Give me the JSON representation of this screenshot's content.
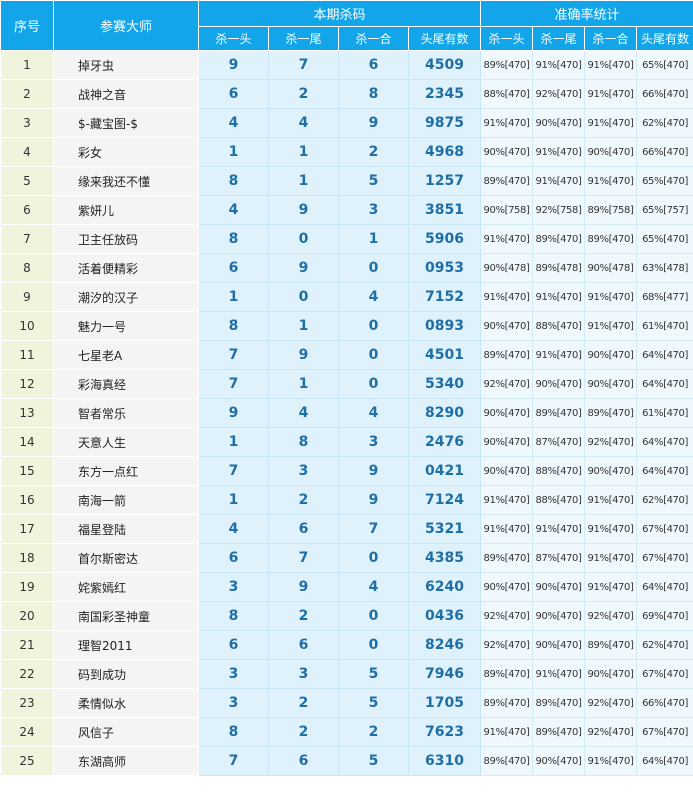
{
  "header": {
    "seq": "序号",
    "name": "参赛大师",
    "group1": "本期杀码",
    "group2": "准确率统计",
    "sub1": [
      "杀一头",
      "杀一尾",
      "杀一合",
      "头尾有数"
    ],
    "sub2": [
      "杀一头",
      "杀一尾",
      "杀一合",
      "头尾有数"
    ]
  },
  "rows": [
    [
      "1",
      "掉牙虫",
      "9",
      "7",
      "6",
      "4509",
      "89%[470]",
      "91%[470]",
      "91%[470]",
      "65%[470]"
    ],
    [
      "2",
      "战神之音",
      "6",
      "2",
      "8",
      "2345",
      "88%[470]",
      "92%[470]",
      "91%[470]",
      "66%[470]"
    ],
    [
      "3",
      "$-藏宝图-$",
      "4",
      "4",
      "9",
      "9875",
      "91%[470]",
      "90%[470]",
      "91%[470]",
      "62%[470]"
    ],
    [
      "4",
      "彩女",
      "1",
      "1",
      "2",
      "4968",
      "90%[470]",
      "91%[470]",
      "90%[470]",
      "66%[470]"
    ],
    [
      "5",
      "缘来我还不懂",
      "8",
      "1",
      "5",
      "1257",
      "89%[470]",
      "91%[470]",
      "91%[470]",
      "65%[470]"
    ],
    [
      "6",
      "紫妍儿",
      "4",
      "9",
      "3",
      "3851",
      "90%[758]",
      "92%[758]",
      "89%[758]",
      "65%[757]"
    ],
    [
      "7",
      "卫主任放码",
      "8",
      "0",
      "1",
      "5906",
      "91%[470]",
      "89%[470]",
      "89%[470]",
      "65%[470]"
    ],
    [
      "8",
      "活着便精彩",
      "6",
      "9",
      "0",
      "0953",
      "90%[478]",
      "89%[478]",
      "90%[478]",
      "63%[478]"
    ],
    [
      "9",
      "潮汐的汉子",
      "1",
      "0",
      "4",
      "7152",
      "91%[470]",
      "91%[470]",
      "91%[470]",
      "68%[477]"
    ],
    [
      "10",
      "魅力一号",
      "8",
      "1",
      "0",
      "0893",
      "90%[470]",
      "88%[470]",
      "91%[470]",
      "61%[470]"
    ],
    [
      "11",
      "七星老A",
      "7",
      "9",
      "0",
      "4501",
      "89%[470]",
      "91%[470]",
      "90%[470]",
      "64%[470]"
    ],
    [
      "12",
      "彩海真经",
      "7",
      "1",
      "0",
      "5340",
      "92%[470]",
      "90%[470]",
      "90%[470]",
      "64%[470]"
    ],
    [
      "13",
      "智者常乐",
      "9",
      "4",
      "4",
      "8290",
      "90%[470]",
      "89%[470]",
      "89%[470]",
      "61%[470]"
    ],
    [
      "14",
      "天意人生",
      "1",
      "8",
      "3",
      "2476",
      "90%[470]",
      "87%[470]",
      "92%[470]",
      "64%[470]"
    ],
    [
      "15",
      "东方一点红",
      "7",
      "3",
      "9",
      "0421",
      "90%[470]",
      "88%[470]",
      "90%[470]",
      "64%[470]"
    ],
    [
      "16",
      "南海一箭",
      "1",
      "2",
      "9",
      "7124",
      "91%[470]",
      "88%[470]",
      "91%[470]",
      "62%[470]"
    ],
    [
      "17",
      "福星登陆",
      "4",
      "6",
      "7",
      "5321",
      "91%[470]",
      "91%[470]",
      "91%[470]",
      "67%[470]"
    ],
    [
      "18",
      "首尔斯密达",
      "6",
      "7",
      "0",
      "4385",
      "89%[470]",
      "87%[470]",
      "91%[470]",
      "67%[470]"
    ],
    [
      "19",
      "姹紫嫣红",
      "3",
      "9",
      "4",
      "6240",
      "90%[470]",
      "90%[470]",
      "91%[470]",
      "64%[470]"
    ],
    [
      "20",
      "南国彩圣神童",
      "8",
      "2",
      "0",
      "0436",
      "92%[470]",
      "90%[470]",
      "92%[470]",
      "69%[470]"
    ],
    [
      "21",
      "理智2011",
      "6",
      "6",
      "0",
      "8246",
      "92%[470]",
      "90%[470]",
      "89%[470]",
      "62%[470]"
    ],
    [
      "22",
      "码到成功",
      "3",
      "3",
      "5",
      "7946",
      "89%[470]",
      "91%[470]",
      "90%[470]",
      "67%[470]"
    ],
    [
      "23",
      "柔情似水",
      "3",
      "2",
      "5",
      "1705",
      "89%[470]",
      "89%[470]",
      "92%[470]",
      "66%[470]"
    ],
    [
      "24",
      "风信子",
      "8",
      "2",
      "2",
      "7623",
      "91%[470]",
      "89%[470]",
      "92%[470]",
      "67%[470]"
    ],
    [
      "25",
      "东湖高师",
      "7",
      "6",
      "5",
      "6310",
      "89%[470]",
      "90%[470]",
      "91%[470]",
      "64%[470]"
    ]
  ]
}
